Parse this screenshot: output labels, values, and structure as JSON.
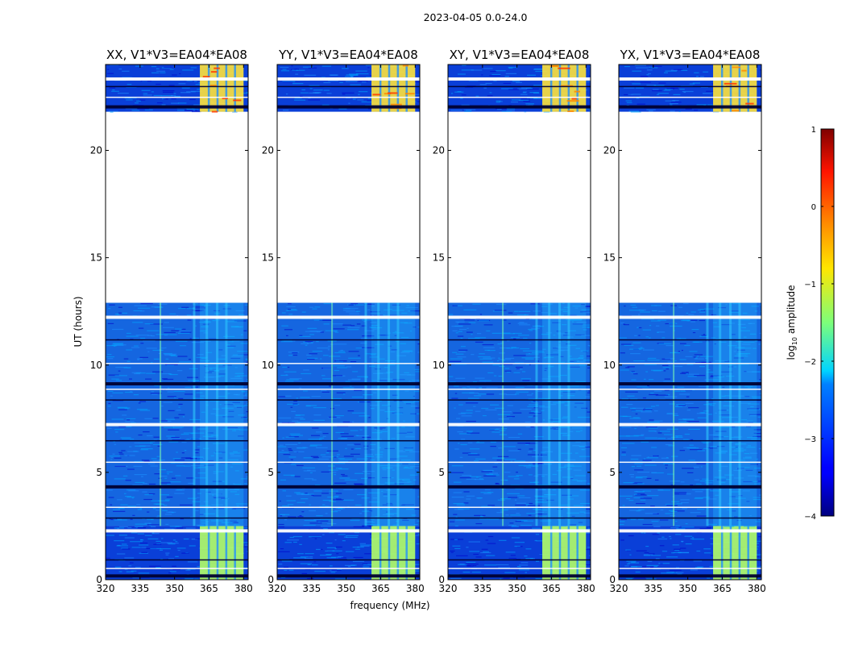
{
  "chart_data": {
    "type": "heatmap",
    "suptitle": "2023-04-05 0.0-24.0",
    "xlabel": "frequency (MHz)",
    "ylabel": "UT (hours)",
    "xlim": [
      320,
      382
    ],
    "ylim": [
      0,
      24
    ],
    "xticks": [
      320,
      335,
      350,
      365,
      380
    ],
    "yticks": [
      0,
      5,
      10,
      15,
      20
    ],
    "panels": [
      {
        "title": "XX, V1*V3=EA04*EA08"
      },
      {
        "title": "YY, V1*V3=EA04*EA08"
      },
      {
        "title": "XY, V1*V3=EA04*EA08"
      },
      {
        "title": "YX, V1*V3=EA04*EA08"
      }
    ],
    "data_segments_hours": [
      [
        0,
        2.5
      ],
      [
        2.5,
        12.9
      ],
      [
        21.8,
        24
      ]
    ],
    "no_data_hours": [
      [
        12.9,
        21.8
      ]
    ],
    "bright_band_mhz": [
      361,
      380
    ],
    "colorbar": {
      "label": "log10 amplitude",
      "label_prefix": "log",
      "label_sub": "10",
      "label_suffix": " amplitude",
      "range": [
        -4,
        1
      ],
      "ticks": [
        1,
        0,
        -1,
        -2,
        -3,
        -4
      ],
      "tick_labels": [
        "1",
        "0",
        "−1",
        "−2",
        "−3",
        "−4"
      ]
    }
  }
}
